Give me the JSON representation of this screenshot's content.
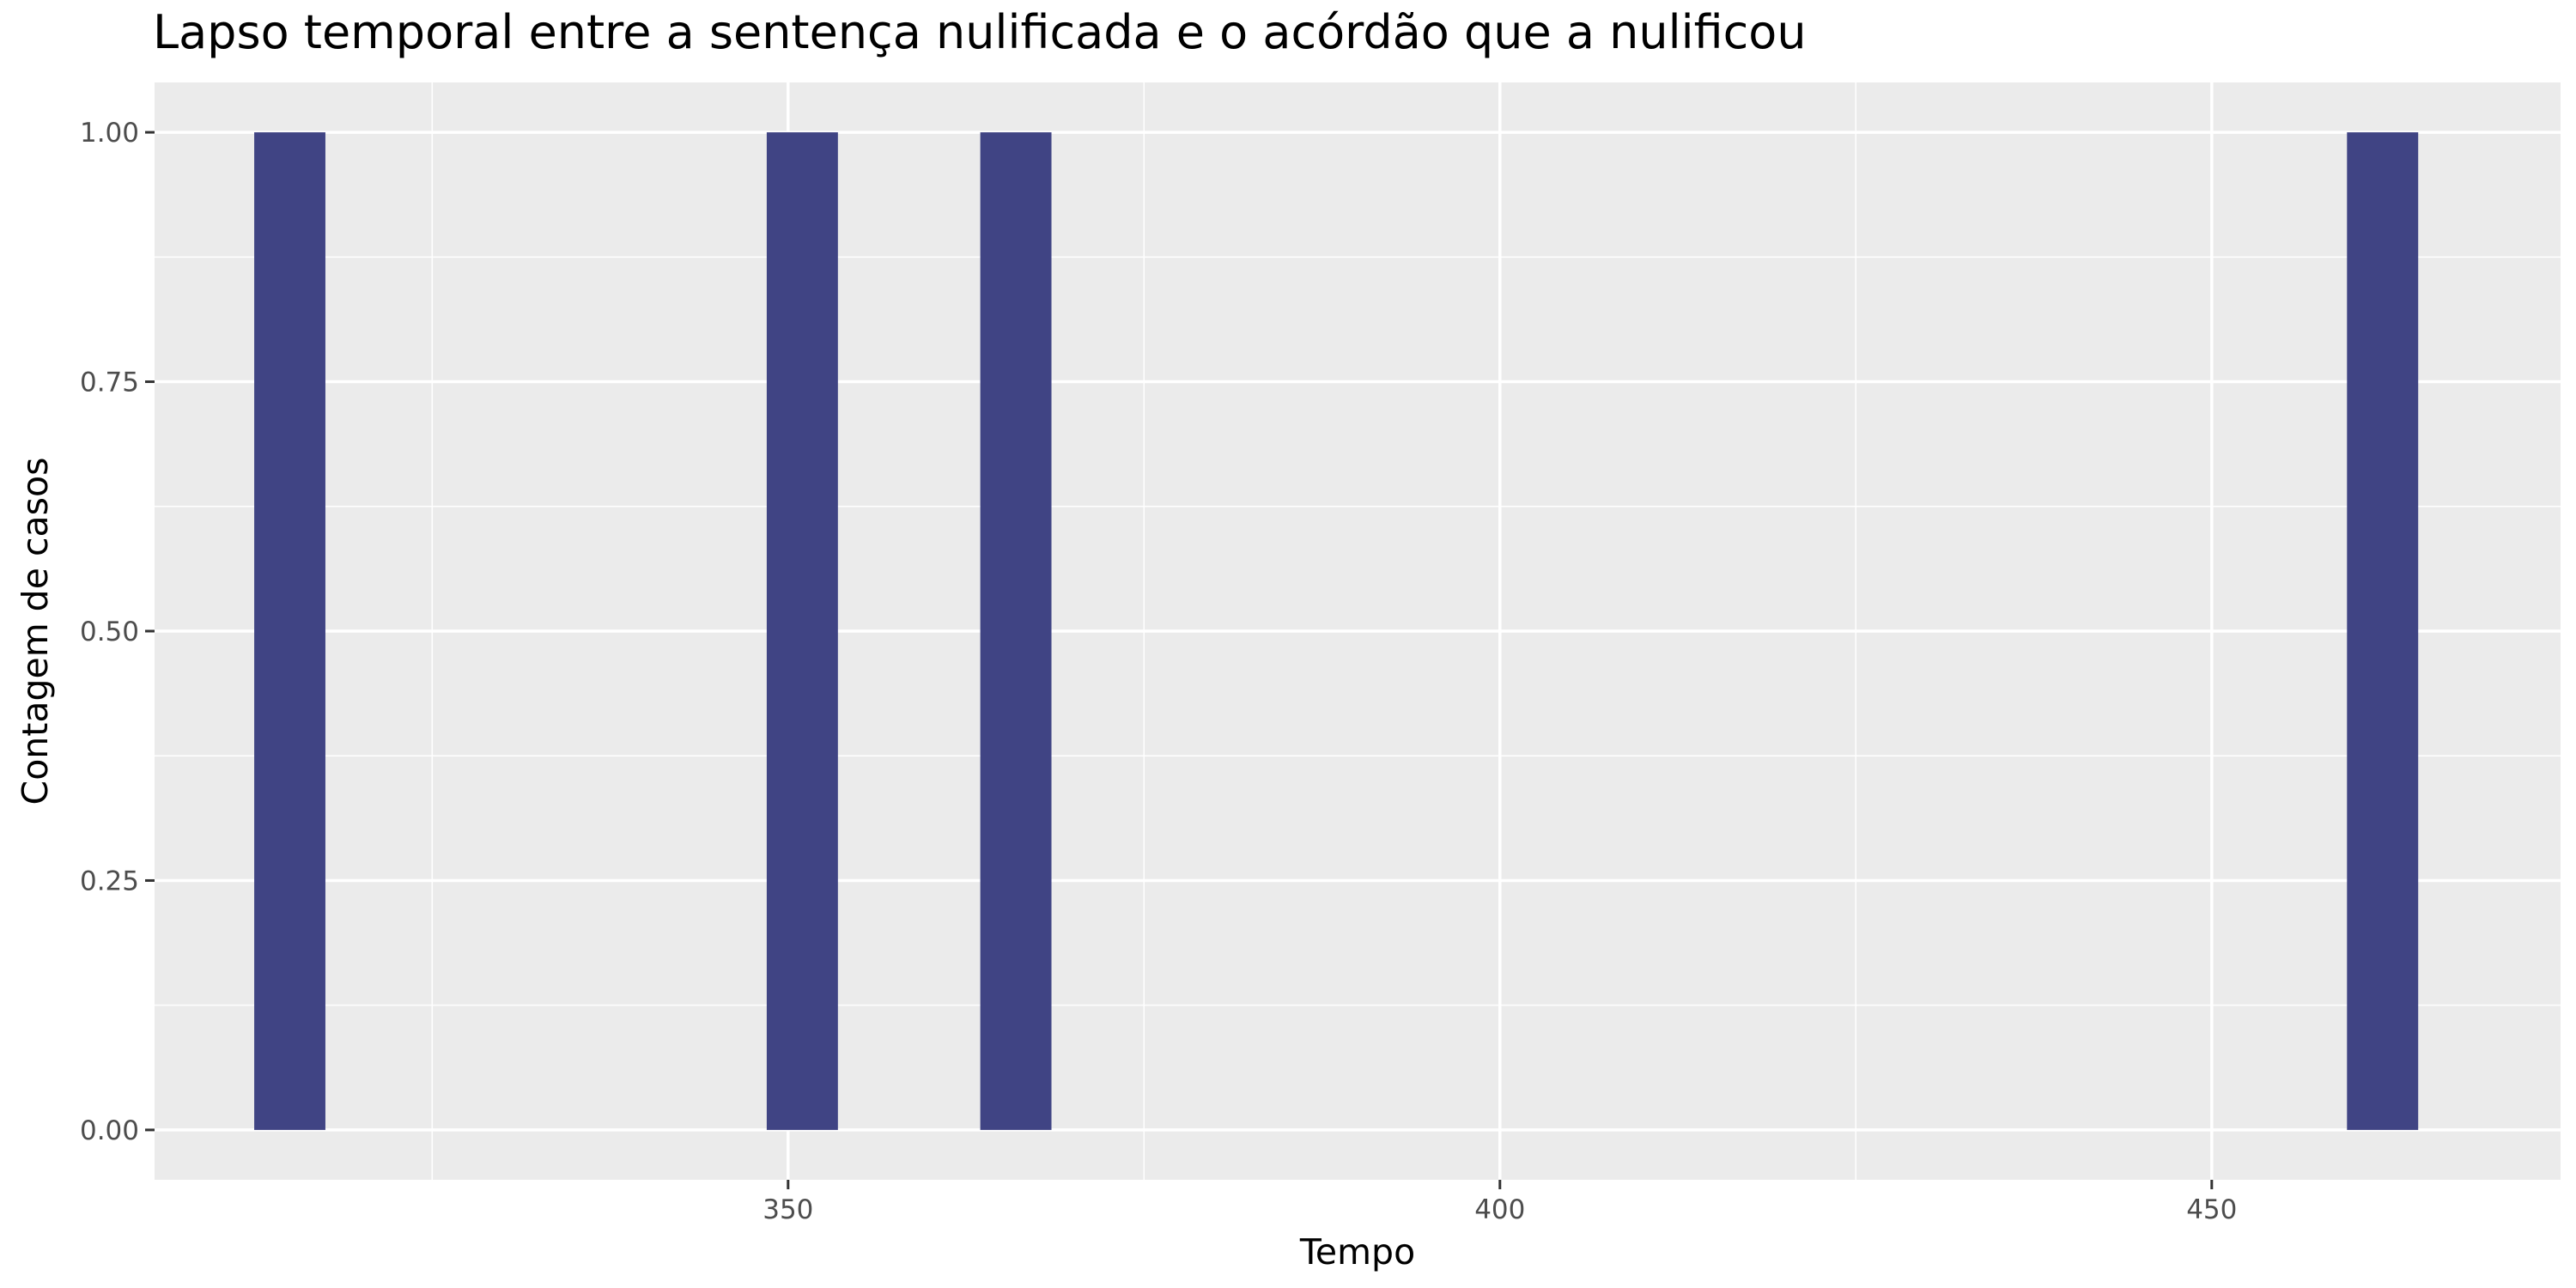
{
  "chart_data": {
    "type": "bar",
    "title": "Lapso temporal entre a sentença nulificada e o acórdão que a nulificou",
    "xlabel": "Tempo",
    "ylabel": "Contagem de casos",
    "bins": [
      {
        "x": 315,
        "count": 1
      },
      {
        "x": 351,
        "count": 1
      },
      {
        "x": 366,
        "count": 1
      },
      {
        "x": 462,
        "count": 1
      }
    ],
    "bin_width": 5,
    "xlim": [
      305.5,
      474.5
    ],
    "ylim": [
      -0.05,
      1.05
    ],
    "x_ticks": [
      350,
      400,
      450
    ],
    "x_tick_labels": [
      "350",
      "400",
      "450"
    ],
    "x_minor_ticks": [
      325,
      375,
      425
    ],
    "y_ticks": [
      0,
      0.25,
      0.5,
      0.75,
      1
    ],
    "y_tick_labels": [
      "0.00",
      "0.25",
      "0.50",
      "0.75",
      "1.00"
    ],
    "grid": true,
    "colors": {
      "bar": "#404484",
      "panel_background": "#ebebeb",
      "grid": "#ffffff",
      "tick_text": "#4d4d4d"
    }
  }
}
